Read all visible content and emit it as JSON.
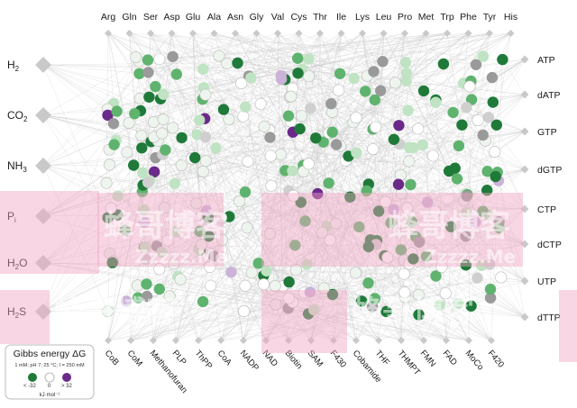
{
  "diagram": {
    "top_labels": [
      "Arg",
      "Gln",
      "Ser",
      "Asp",
      "Glu",
      "Ala",
      "Asn",
      "Gly",
      "Val",
      "Cys",
      "Thr",
      "Ile",
      "Lys",
      "Leu",
      "Pro",
      "Met",
      "Trp",
      "Phe",
      "Tyr",
      "His"
    ],
    "left_labels": [
      {
        "base": "H",
        "sub": "2"
      },
      {
        "base": "CO",
        "sub": "2"
      },
      {
        "base": "NH",
        "sub": "3"
      },
      {
        "base": "P",
        "sub": "i"
      },
      {
        "base": "H",
        "sub": "2",
        "tail": "O"
      },
      {
        "base": "H",
        "sub": "2",
        "tail": "S"
      }
    ],
    "right_labels": [
      "ATP",
      "dATP",
      "GTP",
      "dGTP",
      "CTP",
      "dCTP",
      "UTP",
      "dTTP"
    ],
    "bottom_labels": [
      "CoB",
      "CoM",
      "Methanofuran",
      "PLP",
      "ThPP",
      "CoA",
      "NADP",
      "NAD",
      "Biotin",
      "SAM",
      "F430",
      "Cobamide",
      "THF",
      "THMPT",
      "FMN",
      "FAD",
      "MoCo",
      "F420"
    ],
    "legend": {
      "title": "Gibbs energy ΔG",
      "conditions": "1 mM; pH 7; 25 °C; I = 250 mM",
      "ticks": [
        "< -32",
        "0",
        "> 32"
      ],
      "unit": "kJ·mol⁻¹"
    },
    "watermark": {
      "text": "蜂哥博客",
      "url": "Zzzzz.Me"
    },
    "colors": {
      "dark_green": "#1f7a3a",
      "mid_green": "#5fb36e",
      "light_green": "#bfe3c3",
      "pale": "#eef5ee",
      "grey": "#9a9a9a",
      "light_grey": "#cfcfcf",
      "purple": "#6b2a8a",
      "light_purple": "#cbb3d8",
      "pink_overlay": "#f2a5c4"
    }
  }
}
